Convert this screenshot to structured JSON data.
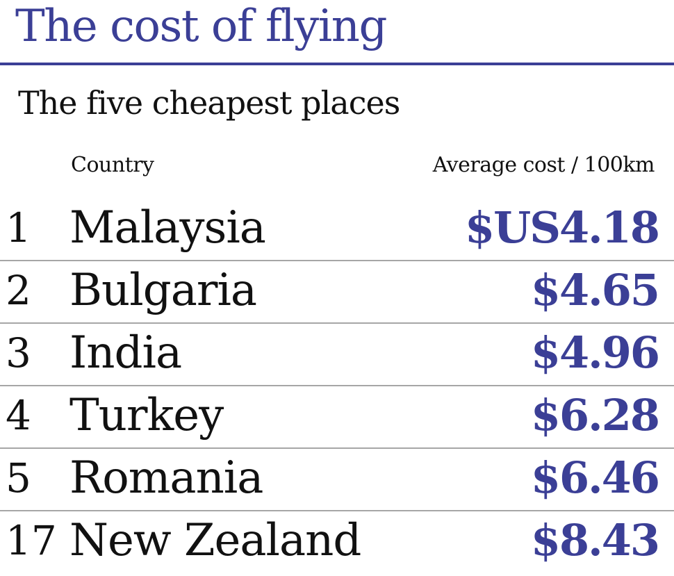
{
  "title": "The cost of flying",
  "subtitle": "The five cheapest places",
  "colors": {
    "accent": "#3b3f96",
    "text": "#111111",
    "divider": "#a6a6a6"
  },
  "chart_data": {
    "type": "table",
    "title": "The cost of flying",
    "subtitle": "The five cheapest places",
    "columns": [
      "",
      "Country",
      "Average cost / 100km"
    ],
    "rows": [
      {
        "rank": "1",
        "country": "Malaysia",
        "cost_label": "$US4.18",
        "value": 4.18
      },
      {
        "rank": "2",
        "country": "Bulgaria",
        "cost_label": "$4.65",
        "value": 4.65
      },
      {
        "rank": "3",
        "country": "India",
        "cost_label": "$4.96",
        "value": 4.96
      },
      {
        "rank": "4",
        "country": "Turkey",
        "cost_label": "$6.28",
        "value": 6.28
      },
      {
        "rank": "5",
        "country": "Romania",
        "cost_label": "$6.46",
        "value": 6.46
      },
      {
        "rank": "17",
        "country": "New Zealand",
        "cost_label": "$8.43",
        "value": 8.43
      }
    ],
    "unit": "$US"
  }
}
